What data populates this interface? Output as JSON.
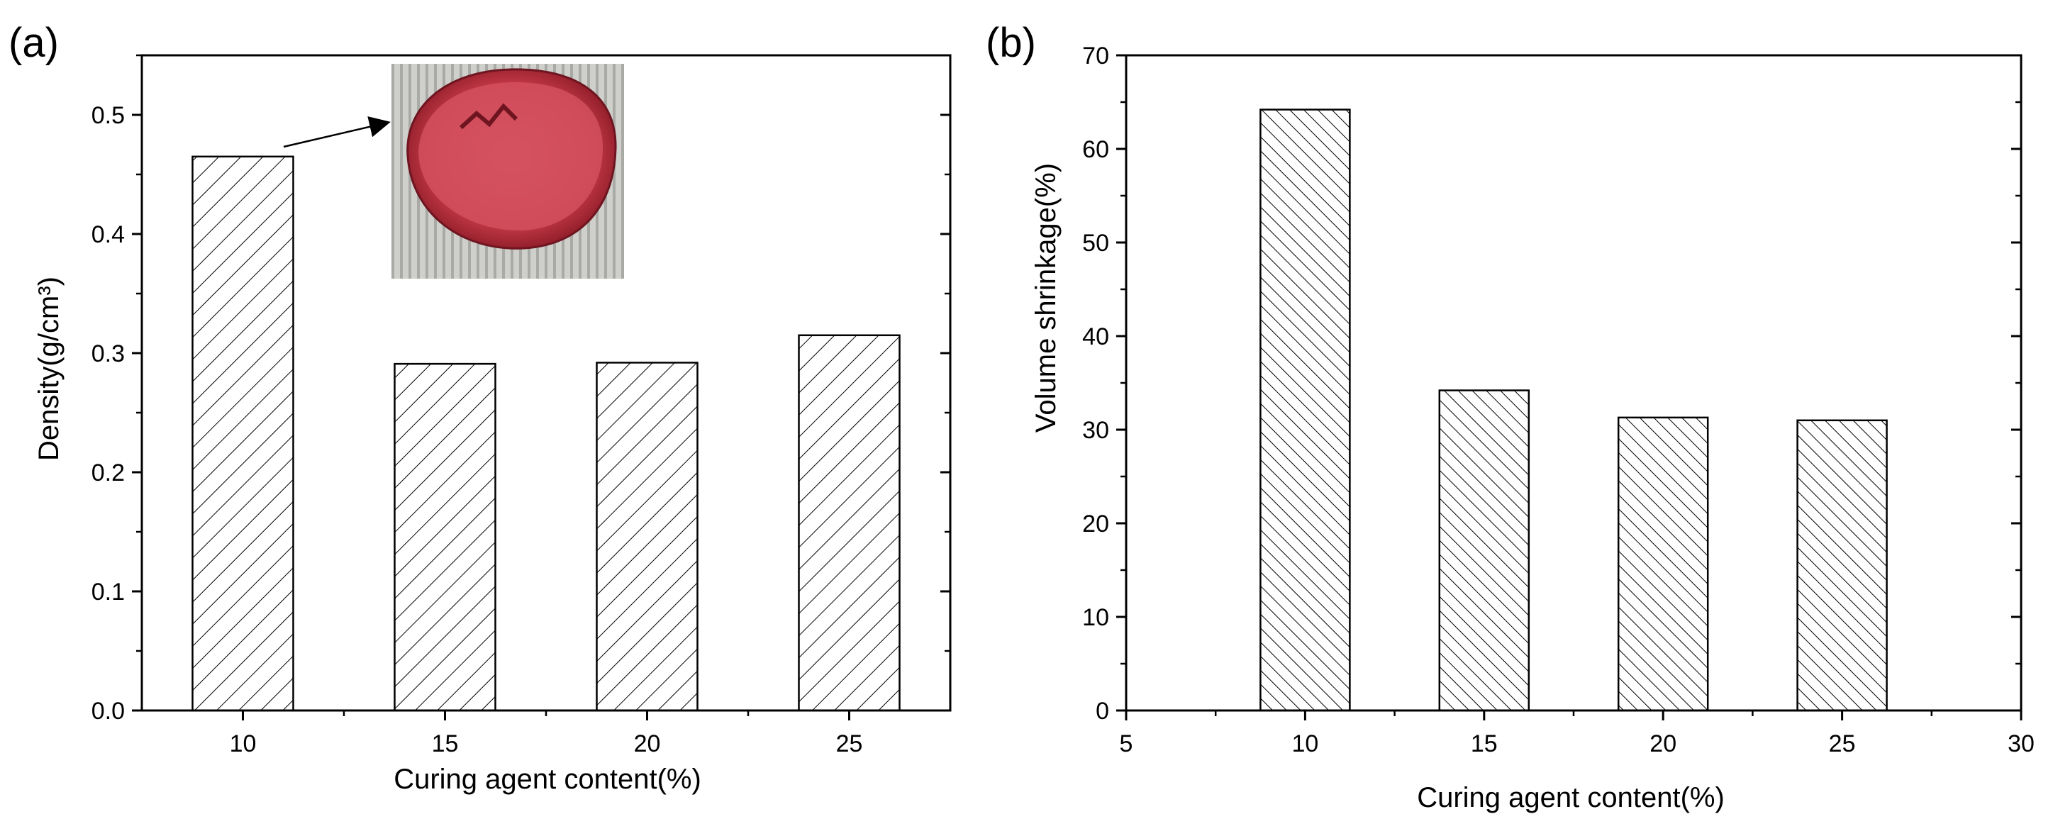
{
  "chart_data": [
    {
      "type": "bar",
      "panel_label": "(a)",
      "xlabel": "Curing agent content(%)",
      "ylabel": "Density(g/cm³)",
      "categories": [
        "10",
        "15",
        "20",
        "25"
      ],
      "values": [
        0.465,
        0.291,
        0.292,
        0.315
      ],
      "ylim": [
        0,
        0.55
      ],
      "yticks": [
        "0.0",
        "0.1",
        "0.2",
        "0.3",
        "0.4",
        "0.5"
      ],
      "ytick_values": [
        0,
        0.1,
        0.2,
        0.3,
        0.4,
        0.5
      ],
      "hatch": "diagonal-right",
      "bar_fill": "#ffffff",
      "bar_stroke": "#000000",
      "inset": {
        "subject": "red cured sample photo",
        "arrow_target_category": "10",
        "sample_color": "#c8404a",
        "background_color": "#c9c9c5"
      }
    },
    {
      "type": "bar",
      "panel_label": "(b)",
      "xlabel": "Curing agent content(%)",
      "ylabel": "Volume shrinkage(%)",
      "x": [
        10,
        15,
        20,
        25
      ],
      "values": [
        64.2,
        34.2,
        31.3,
        31.0
      ],
      "xlim": [
        5,
        30
      ],
      "ylim": [
        0,
        70
      ],
      "xticks": [
        "5",
        "10",
        "15",
        "20",
        "25",
        "30"
      ],
      "xtick_values": [
        5,
        10,
        15,
        20,
        25,
        30
      ],
      "yticks": [
        "0",
        "10",
        "20",
        "30",
        "40",
        "50",
        "60",
        "70"
      ],
      "ytick_values": [
        0,
        10,
        20,
        30,
        40,
        50,
        60,
        70
      ],
      "hatch": "diagonal-left",
      "bar_fill": "#ffffff",
      "bar_stroke": "#000000"
    }
  ]
}
